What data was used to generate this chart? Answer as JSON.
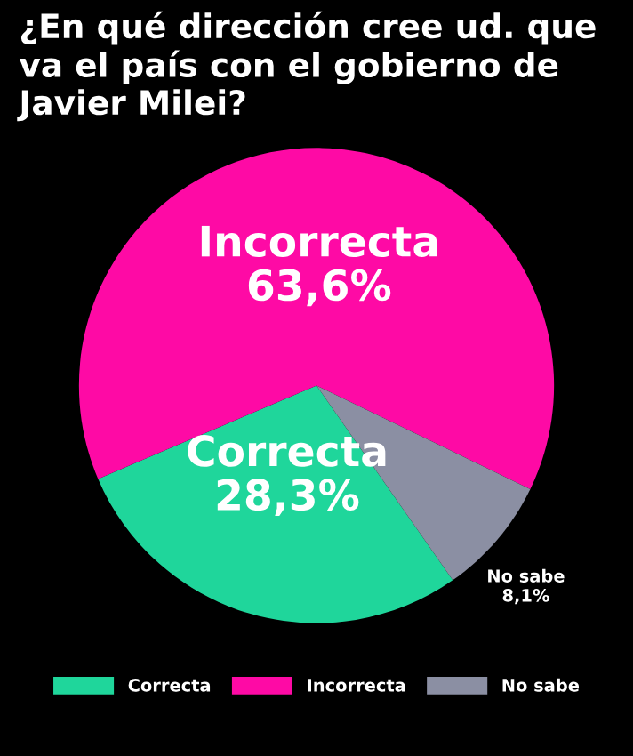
{
  "chart_data": {
    "type": "pie",
    "title": "¿En qué dirección cree ud. que va el país con el gobierno de Javier Milei?",
    "categories": [
      "Correcta",
      "Incorrecta",
      "No sabe"
    ],
    "values": [
      28.3,
      63.6,
      8.1
    ],
    "value_labels": [
      "28,3%",
      "63,6%",
      "8,1%"
    ],
    "colors": [
      "#1fd69b",
      "#fe0aa5",
      "#8b8fa3"
    ],
    "legend": "bottom"
  }
}
